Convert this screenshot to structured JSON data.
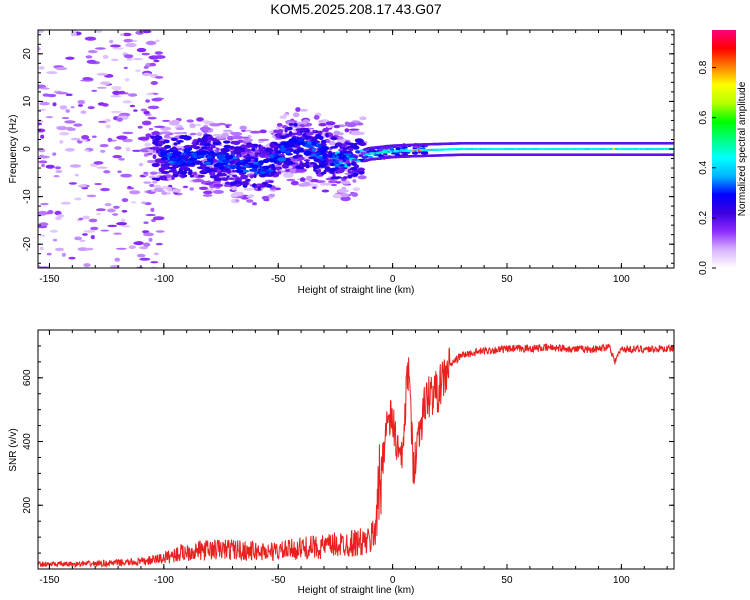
{
  "title": "KOM5.2025.208.17.43.G07",
  "chart_data": [
    {
      "type": "heatmap",
      "xlabel": "Height of straight line (km)",
      "ylabel": "Frequency (Hz)",
      "xlim": [
        -155,
        123
      ],
      "ylim": [
        -25,
        25
      ],
      "xticks": [
        -150,
        -100,
        -50,
        0,
        50,
        100
      ],
      "yticks": [
        -20,
        -10,
        0,
        10,
        20
      ],
      "colorbar": {
        "label": "Normalized spectral amplitude",
        "range": [
          0,
          0.95
        ],
        "ticks": [
          0.0,
          0.2,
          0.4,
          0.6,
          0.8
        ],
        "colormap": [
          "#ffffff",
          "#d8b4ff",
          "#8c2cff",
          "#3d00e0",
          "#0000ff",
          "#00b4ff",
          "#00ffff",
          "#00ff80",
          "#00ff00",
          "#b4ff00",
          "#ffff00",
          "#ff8000",
          "#ff0000",
          "#ff0080"
        ]
      },
      "signal_track": {
        "description_points": [
          [
            -100,
            -2
          ],
          [
            -85,
            -1.5
          ],
          [
            -70,
            -3
          ],
          [
            -55,
            -4
          ],
          [
            -45,
            1
          ],
          [
            -35,
            0
          ],
          [
            -25,
            -2
          ],
          [
            -20,
            -2.5
          ],
          [
            -10,
            -1
          ],
          [
            0,
            -0.5
          ],
          [
            10,
            -0.3
          ],
          [
            30,
            0
          ],
          [
            123,
            0
          ]
        ]
      }
    },
    {
      "type": "line",
      "xlabel": "Height of straight line (km)",
      "ylabel": "SNR (v/v)",
      "xlim": [
        -155,
        123
      ],
      "ylim": [
        0,
        750
      ],
      "xticks": [
        -150,
        -100,
        -50,
        0,
        50,
        100
      ],
      "yticks": [
        200,
        400,
        600
      ],
      "series": [
        {
          "color": "#e8201e",
          "x": [
            -155,
            -140,
            -125,
            -110,
            -100,
            -90,
            -80,
            -70,
            -60,
            -50,
            -40,
            -30,
            -20,
            -10,
            -8,
            -5,
            -3,
            0,
            2,
            4,
            6,
            7,
            9,
            12,
            15,
            20,
            25,
            30,
            40,
            50,
            60,
            70,
            80,
            90,
            95,
            97,
            100,
            110,
            123
          ],
          "values": [
            15,
            15,
            18,
            22,
            35,
            55,
            60,
            62,
            55,
            55,
            65,
            70,
            80,
            85,
            120,
            300,
            450,
            470,
            380,
            330,
            550,
            640,
            320,
            450,
            540,
            560,
            640,
            670,
            685,
            690,
            692,
            695,
            690,
            690,
            700,
            650,
            690,
            690,
            692
          ]
        }
      ]
    }
  ]
}
